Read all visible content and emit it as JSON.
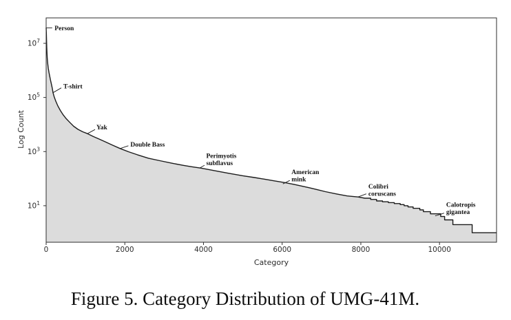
{
  "figure": {
    "caption": "Figure 5. Category Distribution of UMG-41M."
  },
  "chart_data": {
    "type": "area",
    "title": "Category Distribution of UMG-41M",
    "xlabel": "Category",
    "ylabel": "Log Count",
    "x_ticks": [
      0,
      2000,
      4000,
      6000,
      8000,
      10000
    ],
    "y_ticks": [
      {
        "base": "10",
        "exp": "7",
        "value": 10000000
      },
      {
        "base": "10",
        "exp": "5",
        "value": 100000
      },
      {
        "base": "10",
        "exp": "3",
        "value": 1000
      },
      {
        "base": "10",
        "exp": "1",
        "value": 10
      }
    ],
    "xlim": [
      0,
      11450
    ],
    "ylog_exp_lim": [
      -0.35,
      7.94
    ],
    "grid": false,
    "legend": null,
    "line_color": "#1b1b1b",
    "fill_color": "#dcdcdc",
    "axis_color": "#2e2e2e",
    "tick_text_color": "#2b2b2b",
    "series": [
      {
        "name": "category-count-curve",
        "points": [
          [
            0,
            38000000
          ],
          [
            5,
            25000000
          ],
          [
            10,
            13000000
          ],
          [
            15,
            7000000
          ],
          [
            22,
            4000000
          ],
          [
            30,
            2600000
          ],
          [
            42,
            1700000
          ],
          [
            55,
            1200000
          ],
          [
            72,
            850000
          ],
          [
            90,
            630000
          ],
          [
            110,
            440000
          ],
          [
            130,
            330000
          ],
          [
            155,
            220000
          ],
          [
            175,
            150000
          ],
          [
            205,
            105000
          ],
          [
            245,
            73000
          ],
          [
            300,
            48000
          ],
          [
            360,
            33000
          ],
          [
            430,
            23000
          ],
          [
            510,
            16500
          ],
          [
            600,
            12000
          ],
          [
            700,
            8600
          ],
          [
            810,
            6600
          ],
          [
            930,
            5400
          ],
          [
            1050,
            4600
          ],
          [
            1200,
            3600
          ],
          [
            1350,
            2900
          ],
          [
            1500,
            2300
          ],
          [
            1680,
            1750
          ],
          [
            1880,
            1300
          ],
          [
            2100,
            980
          ],
          [
            2320,
            760
          ],
          [
            2600,
            570
          ],
          [
            2890,
            460
          ],
          [
            3200,
            370
          ],
          [
            3490,
            310
          ],
          [
            3700,
            275
          ],
          [
            3940,
            245
          ],
          [
            4300,
            195
          ],
          [
            4640,
            158
          ],
          [
            5000,
            128
          ],
          [
            5300,
            110
          ],
          [
            5520,
            97
          ],
          [
            5800,
            83
          ],
          [
            6050,
            72
          ],
          [
            6290,
            62
          ],
          [
            6500,
            53
          ],
          [
            6690,
            46
          ],
          [
            6900,
            39
          ],
          [
            7100,
            33
          ],
          [
            7390,
            27
          ],
          [
            7650,
            23
          ],
          [
            7930,
            21
          ],
          [
            8100,
            19
          ]
        ],
        "tail_steps": [
          [
            8250,
            17
          ],
          [
            8400,
            15
          ],
          [
            8550,
            14
          ],
          [
            8700,
            13
          ],
          [
            8850,
            12
          ],
          [
            9000,
            11
          ],
          [
            9100,
            10
          ],
          [
            9200,
            9
          ],
          [
            9330,
            8
          ],
          [
            9500,
            7
          ],
          [
            9590,
            6
          ],
          [
            9770,
            5
          ],
          [
            10030,
            4
          ],
          [
            10130,
            3
          ],
          [
            10340,
            2
          ],
          [
            10830,
            1
          ]
        ]
      }
    ],
    "annotations": [
      {
        "id": "person",
        "lines": [
          "Person"
        ],
        "xy": [
          5,
          37000000
        ],
        "leader": [
          8.5,
          0
        ],
        "offset": [
          12,
          3.5
        ]
      },
      {
        "id": "t-shirt",
        "lines": [
          "T-shirt"
        ],
        "xy": [
          175,
          150000
        ],
        "leader": [
          12,
          -7
        ],
        "offset": [
          15,
          -6
        ]
      },
      {
        "id": "yak",
        "lines": [
          "Yak"
        ],
        "xy": [
          1050,
          4600
        ],
        "leader": [
          11,
          -6
        ],
        "offset": [
          13,
          -6
        ]
      },
      {
        "id": "double-bass",
        "lines": [
          "Double Bass"
        ],
        "xy": [
          1880,
          1300
        ],
        "leader": [
          12,
          -4
        ],
        "offset": [
          15,
          -3
        ]
      },
      {
        "id": "perimyotis-subflavus",
        "lines": [
          "Perimyotis",
          "subflavus"
        ],
        "xy": [
          3905,
          248
        ],
        "leader": [
          7,
          -4
        ],
        "offset": [
          9.5,
          -14.5
        ]
      },
      {
        "id": "american-mink",
        "lines": [
          "American",
          "mink"
        ],
        "xy": [
          6020,
          64
        ],
        "leader": [
          10,
          -5
        ],
        "offset": [
          12.5,
          -14
        ]
      },
      {
        "id": "colibri-coruscans",
        "lines": [
          "Colibri",
          "coruscans"
        ],
        "xy": [
          7930,
          21
        ],
        "leader": [
          12,
          -4.5
        ],
        "offset": [
          15,
          -12
        ]
      },
      {
        "id": "calotropis-gigantea",
        "lines": [
          "Calotropis",
          "gigantea"
        ],
        "xy": [
          9890,
          4.2
        ],
        "leader": [
          13,
          -4
        ],
        "offset": [
          16,
          -13
        ]
      }
    ]
  }
}
